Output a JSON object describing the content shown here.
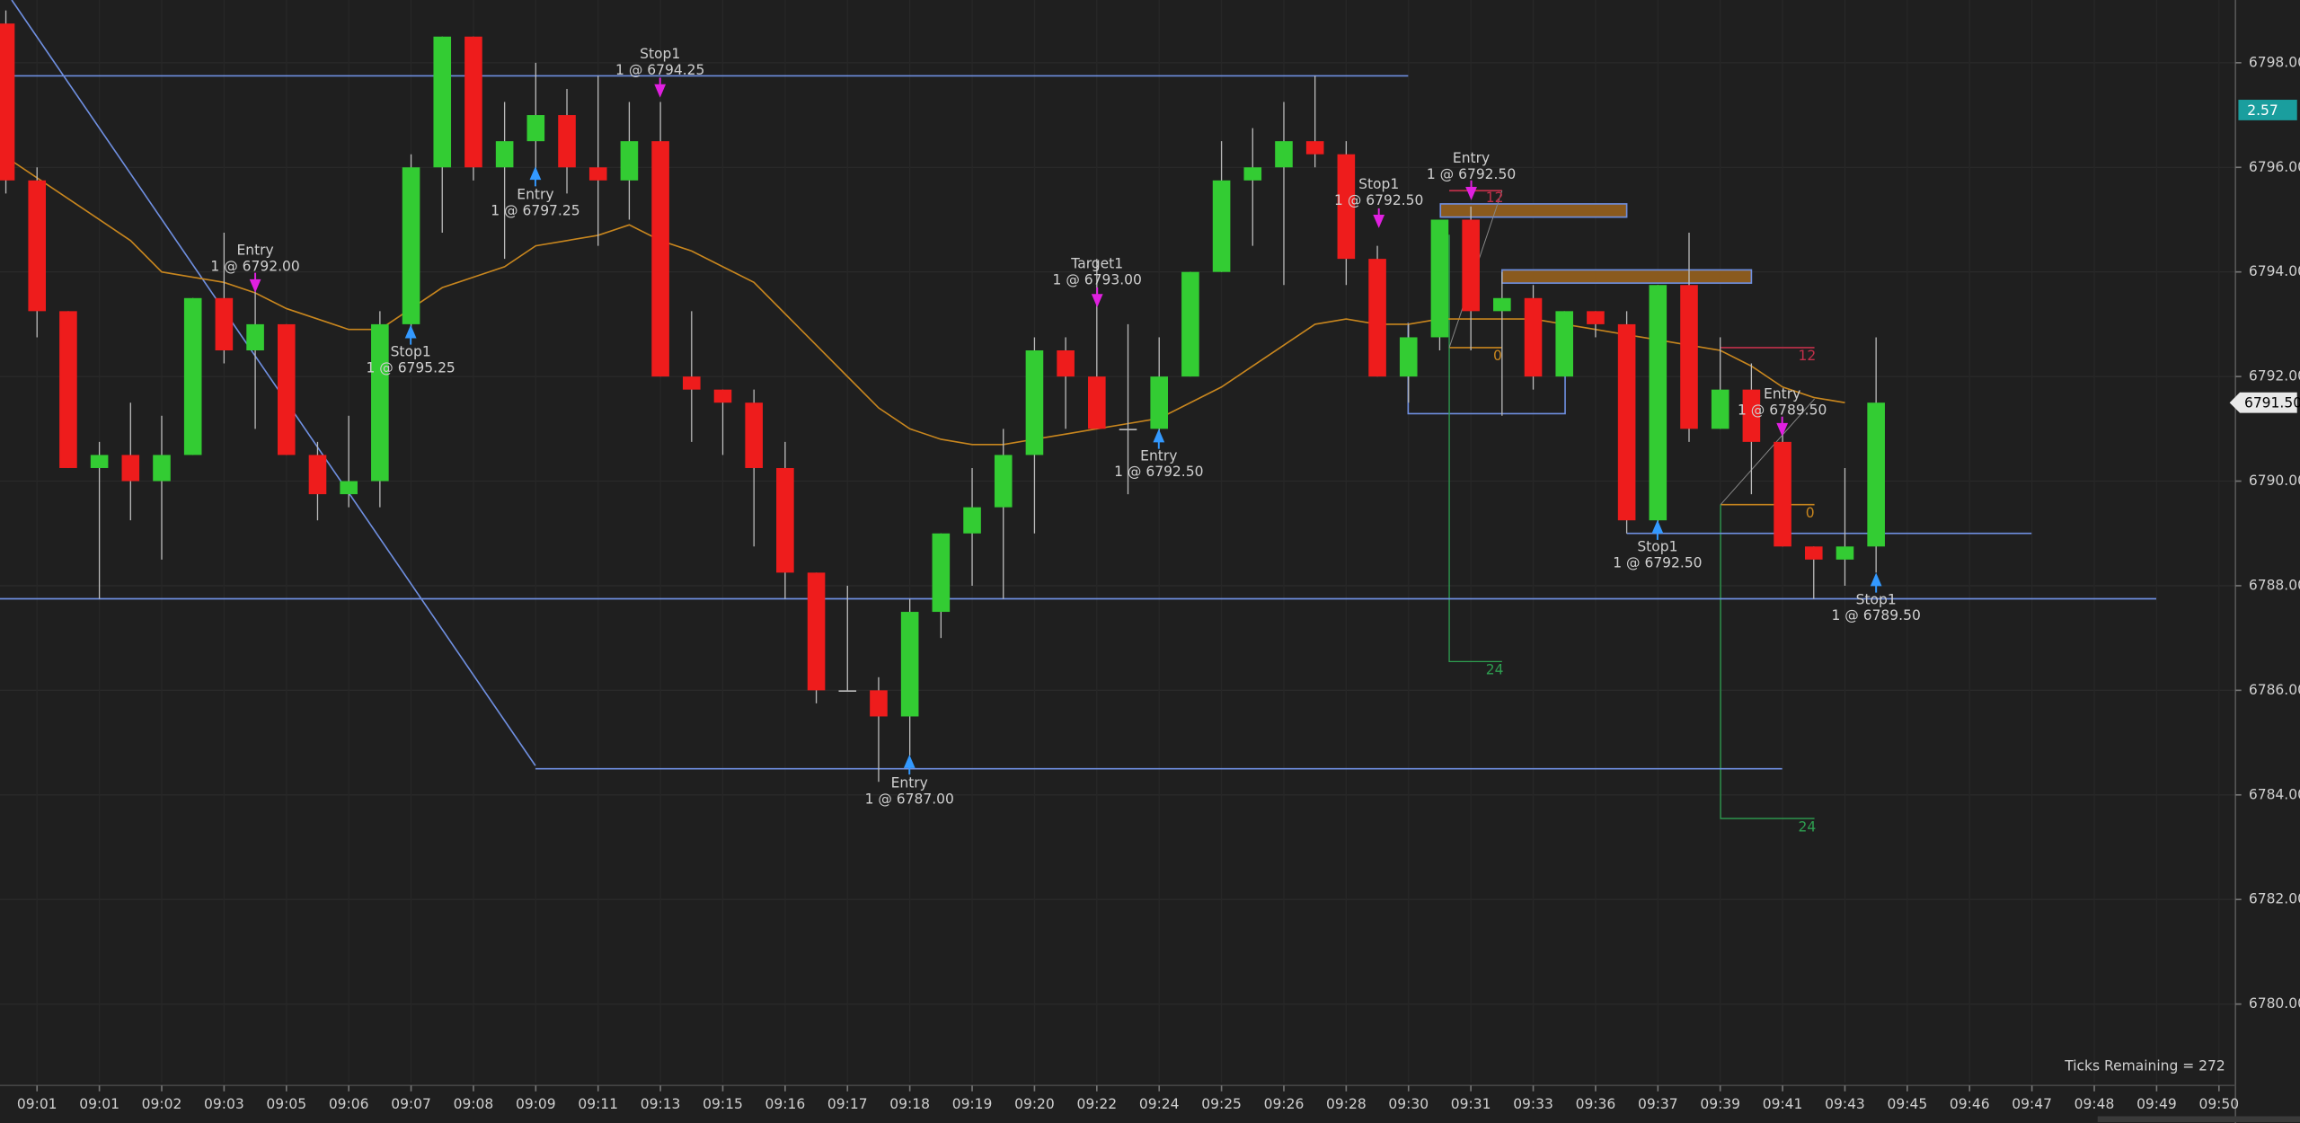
{
  "chart_data": {
    "type": "candlestick",
    "categories": [
      null,
      "09:01",
      null,
      "09:01",
      null,
      "09:02",
      null,
      "09:03",
      null,
      "09:05",
      null,
      "09:06",
      null,
      "09:07",
      null,
      "09:08",
      null,
      "09:09",
      null,
      "09:11",
      null,
      "09:13",
      null,
      "09:15",
      null,
      "09:16",
      null,
      "09:17",
      null,
      "09:18",
      null,
      "09:19",
      null,
      "09:20",
      null,
      "09:22",
      null,
      "09:24",
      null,
      "09:25",
      null,
      "09:26",
      null,
      "09:28",
      null,
      "09:30",
      null,
      "09:31",
      null,
      "09:33",
      null,
      "09:36",
      null,
      "09:37",
      null,
      "09:39",
      null,
      "09:41",
      null,
      "09:43",
      null,
      "09:45",
      null,
      "09:46",
      null,
      "09:47",
      null,
      "09:48",
      null,
      "09:49",
      null,
      "09:50"
    ],
    "open": [
      6798.75,
      6795.75,
      6793.25,
      6790.25,
      6790.5,
      6790,
      6790.5,
      6793.5,
      6792.5,
      6793,
      6790.5,
      6789.75,
      6790,
      6793,
      6796,
      6798.5,
      6796,
      6796.5,
      6797,
      6796,
      6795.75,
      6796.5,
      6792,
      6791.75,
      6791.5,
      6790.25,
      6788.25,
      6786,
      6786,
      6785.5,
      6787.5,
      6789,
      6789.5,
      6790.5,
      6792.5,
      6792,
      6791,
      6791,
      6792,
      6794,
      6795.75,
      6796,
      6796.5,
      6796.25,
      6794.25,
      6792,
      6792.75,
      6795,
      6793.25,
      6793.5,
      6792,
      6793.25,
      6793,
      6789.25,
      6793.75,
      6791,
      6791.75,
      6790.75,
      6788.75,
      6788.5,
      6788.75,
      null,
      null,
      null,
      null,
      null,
      null,
      null,
      null,
      null,
      null,
      null
    ],
    "high": [
      6799,
      6796,
      6793.25,
      6790.75,
      6791.5,
      6791.25,
      6793.5,
      6794.75,
      6793.75,
      6793,
      6790.75,
      6791.25,
      6793.25,
      6796.25,
      6798.5,
      6798.5,
      6797.25,
      6798,
      6797.5,
      6797.75,
      6797.25,
      6797.25,
      6793.25,
      6791.75,
      6791.75,
      6790.75,
      6788.25,
      6788,
      6786.25,
      6787.75,
      6789,
      6790.25,
      6791,
      6792.75,
      6792.75,
      6794.25,
      6793,
      6792.75,
      6794,
      6796.5,
      6796.75,
      6797.25,
      6797.75,
      6796.5,
      6794.5,
      6793,
      6795,
      6795.25,
      6794,
      6793.75,
      6793.25,
      6793.25,
      6793.25,
      6793.75,
      6794.75,
      6792.75,
      6792.25,
      6791,
      6788.75,
      6790.25,
      6792.75,
      null,
      null,
      null,
      null,
      null,
      null,
      null,
      null,
      null,
      null,
      null
    ],
    "low": [
      6795.5,
      6792.75,
      6790.25,
      6787.75,
      6789.25,
      6788.5,
      6790.5,
      6792.25,
      6791,
      6790.5,
      6789.25,
      6789.5,
      6789.5,
      6792.75,
      6794.75,
      6795.75,
      6794.25,
      6795.75,
      6795.5,
      6794.5,
      6795,
      6792,
      6790.75,
      6790.5,
      6788.75,
      6787.75,
      6785.75,
      6786,
      6784.25,
      6784.75,
      6787,
      6788,
      6787.75,
      6789,
      6791,
      6791,
      6789.75,
      6790.75,
      6792,
      6794,
      6794.5,
      6793.75,
      6796,
      6793.75,
      6792,
      6791.5,
      6792.5,
      6792.5,
      6791.25,
      6791.75,
      6792,
      6792.75,
      6789,
      6789,
      6790.75,
      6791,
      6789.75,
      6788.75,
      6787.75,
      6788,
      6788.25,
      null,
      null,
      null,
      null,
      null,
      null,
      null,
      null,
      null,
      null,
      null
    ],
    "close": [
      6795.75,
      6793.25,
      6790.25,
      6790.5,
      6790,
      6790.5,
      6793.5,
      6792.5,
      6793,
      6790.5,
      6789.75,
      6790,
      6793,
      6796,
      6798.5,
      6796,
      6796.5,
      6797,
      6796,
      6795.75,
      6796.5,
      6792,
      6791.75,
      6791.5,
      6790.25,
      6788.25,
      6786,
      6786,
      6785.5,
      6787.5,
      6789,
      6789.5,
      6790.5,
      6792.5,
      6792,
      6791,
      6791,
      6792,
      6794,
      6795.75,
      6796,
      6796.5,
      6796.25,
      6794.25,
      6792,
      6792.75,
      6795,
      6793.25,
      6793.5,
      6792,
      6793.25,
      6793,
      6789.25,
      6793.75,
      6791,
      6791.75,
      6790.75,
      6788.75,
      6788.5,
      6788.75,
      6791.5,
      null,
      null,
      null,
      null,
      null,
      null,
      null,
      null,
      null,
      null,
      null
    ],
    "up_color": "#33cc33",
    "down_color": "#ee1c1c",
    "moving_average": {
      "color": "#c8861e",
      "values": [
        6796.2,
        6795.8,
        6795.4,
        6795.0,
        6794.6,
        6794.0,
        6793.9,
        6793.8,
        6793.6,
        6793.3,
        6793.1,
        6792.9,
        6792.9,
        6793.3,
        6793.7,
        6793.9,
        6794.1,
        6794.5,
        6794.6,
        6794.7,
        6794.9,
        6794.6,
        6794.4,
        6794.1,
        6793.8,
        6793.2,
        6792.6,
        6792.0,
        6791.4,
        6791.0,
        6790.8,
        6790.7,
        6790.7,
        6790.8,
        6790.9,
        6791.0,
        6791.1,
        6791.2,
        6791.5,
        6791.8,
        6792.2,
        6792.6,
        6793.0,
        6793.1,
        6793.0,
        6793.0,
        6793.1,
        6793.1,
        6793.1,
        6793.1,
        6793.0,
        6792.9,
        6792.8,
        6792.7,
        6792.6,
        6792.5,
        6792.2,
        6791.8,
        6791.6,
        6791.5,
        null,
        null,
        null,
        null,
        null,
        null,
        null,
        null,
        null,
        null,
        null,
        null
      ]
    },
    "ylim": [
      6778.5,
      6799.2
    ],
    "yticks": [
      {
        "value": 6780,
        "label": "6780.00"
      },
      {
        "value": 6782,
        "label": "6782.00"
      },
      {
        "value": 6784,
        "label": "6784.00"
      },
      {
        "value": 6786,
        "label": "6786.00"
      },
      {
        "value": 6788,
        "label": "6788.00"
      },
      {
        "value": 6790,
        "label": "6790.00"
      },
      {
        "value": 6792,
        "label": "6792.00"
      },
      {
        "value": 6794,
        "label": "6794.00"
      },
      {
        "value": 6796,
        "label": "6796.00"
      },
      {
        "value": 6798,
        "label": "6798.00"
      }
    ],
    "grid": true,
    "levels": {
      "color": "#6f8fe0",
      "values": [
        6797.75,
        6787.75,
        6784.5,
        6789
      ]
    },
    "annotations": [
      {
        "title": "Entry",
        "detail": "1 @ 6792.00"
      },
      {
        "title": "Stop1",
        "detail": "1 @ 6795.25"
      },
      {
        "title": "Entry",
        "detail": "1 @ 6797.25"
      },
      {
        "title": "Stop1",
        "detail": "1 @ 6794.25"
      },
      {
        "title": "Entry",
        "detail": "1 @ 6787.00"
      },
      {
        "title": "Target1",
        "detail": "1 @ 6793.00"
      },
      {
        "title": "Entry",
        "detail": "1 @ 6792.50"
      },
      {
        "title": "Stop1",
        "detail": "1 @ 6792.50"
      },
      {
        "title": "Entry",
        "detail": "1 @ 6792.50"
      },
      {
        "title": "Entry",
        "detail": "1 @ 6789.50"
      },
      {
        "title": "Stop1",
        "detail": "1 @ 6792.50"
      },
      {
        "title": "Stop1",
        "detail": "1 @ 6789.50"
      }
    ],
    "small_labels": [
      {
        "title": "12",
        "color": "#c0304a"
      },
      {
        "title": "0",
        "color": "#c8861e"
      },
      {
        "title": "24",
        "color": "#2e9e50"
      },
      {
        "title": "12",
        "color": "#c0304a"
      },
      {
        "title": "0",
        "color": "#c8861e"
      },
      {
        "title": "24",
        "color": "#2e9e50"
      }
    ],
    "indicator_value": 2.57,
    "last_price": {
      "value": 6791.5,
      "label": "6791.50"
    },
    "footer": "Ticks Remaining = 272"
  }
}
